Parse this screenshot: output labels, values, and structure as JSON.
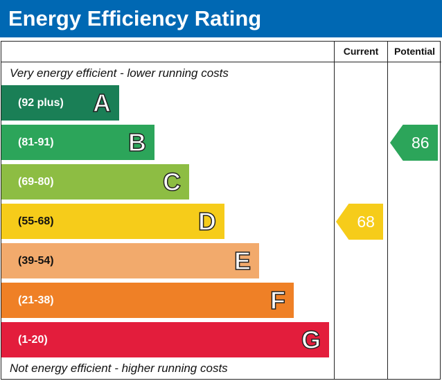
{
  "title": "Energy Efficiency Rating",
  "columns": {
    "current": "Current",
    "potential": "Potential"
  },
  "top_note": "Very energy efficient - lower running costs",
  "bottom_note": "Not energy efficient - higher running costs",
  "chart_data": {
    "type": "bar",
    "title": "Energy Efficiency Rating",
    "bands": [
      {
        "letter": "A",
        "range": "(92 plus)",
        "color": "#1a7f56"
      },
      {
        "letter": "B",
        "range": "(81-91)",
        "color": "#2ca55a"
      },
      {
        "letter": "C",
        "range": "(69-80)",
        "color": "#8dbd43"
      },
      {
        "letter": "D",
        "range": "(55-68)",
        "color": "#f6cc1a"
      },
      {
        "letter": "E",
        "range": "(39-54)",
        "color": "#f2aa6c"
      },
      {
        "letter": "F",
        "range": "(21-38)",
        "color": "#ef8026"
      },
      {
        "letter": "G",
        "range": "(1-20)",
        "color": "#e31d3c"
      }
    ],
    "current": {
      "value": 68,
      "band": "D",
      "color": "#f6cc1a"
    },
    "potential": {
      "value": 86,
      "band": "B",
      "color": "#2ca55a"
    }
  }
}
